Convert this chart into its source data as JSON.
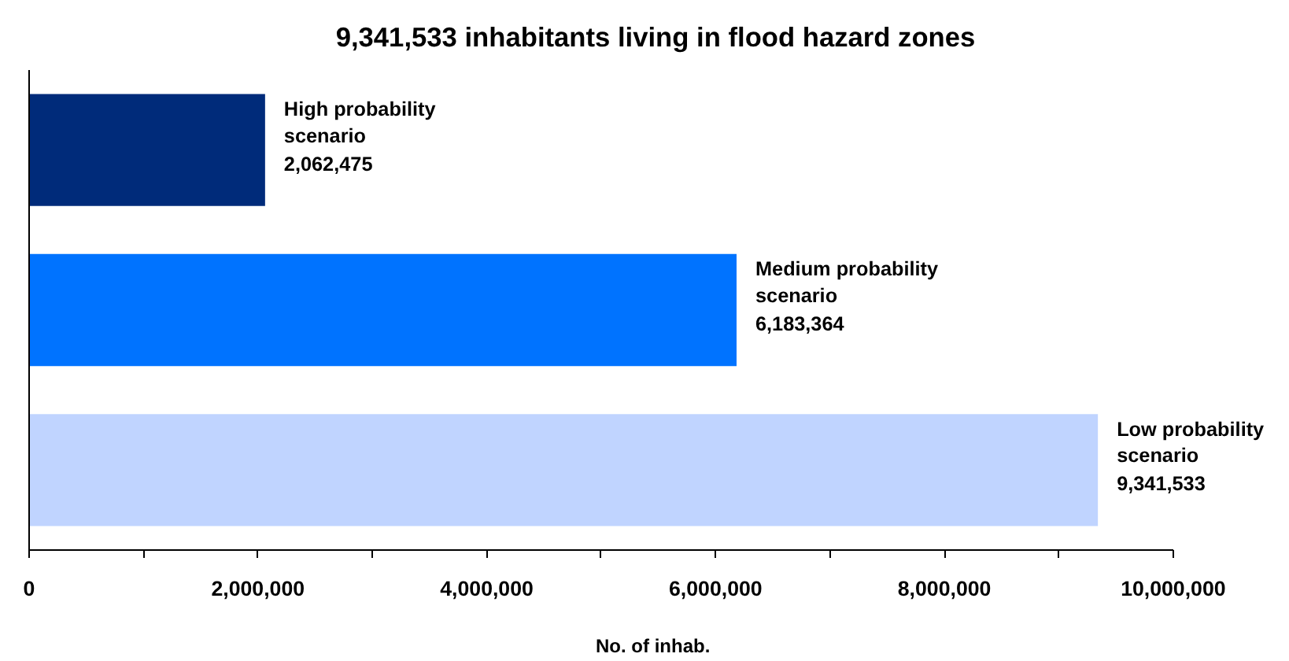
{
  "chart_data": {
    "type": "bar",
    "orientation": "horizontal",
    "title": "9,341,533 inhabitants living in flood hazard zones",
    "xlabel": "No.  of inhab.",
    "categories": [
      "High probability scenario",
      "Medium probability scenario",
      "Low probability scenario"
    ],
    "values": [
      2062475,
      6183364,
      9341533
    ],
    "colors": [
      "#002b7a",
      "#0073ff",
      "#c0d4ff"
    ],
    "value_labels": [
      "2,062,475",
      "6,183,364",
      "9,341,533"
    ],
    "xlim": [
      0,
      10000000
    ],
    "xticks": [
      {
        "value": 0,
        "label": "0"
      },
      {
        "value": 2000000,
        "label": "2,000,000"
      },
      {
        "value": 4000000,
        "label": "4,000,000"
      },
      {
        "value": 6000000,
        "label": "6,000,000"
      },
      {
        "value": 8000000,
        "label": "8,000,000"
      },
      {
        "value": 10000000,
        "label": "10,000,000"
      }
    ],
    "grid": false
  }
}
